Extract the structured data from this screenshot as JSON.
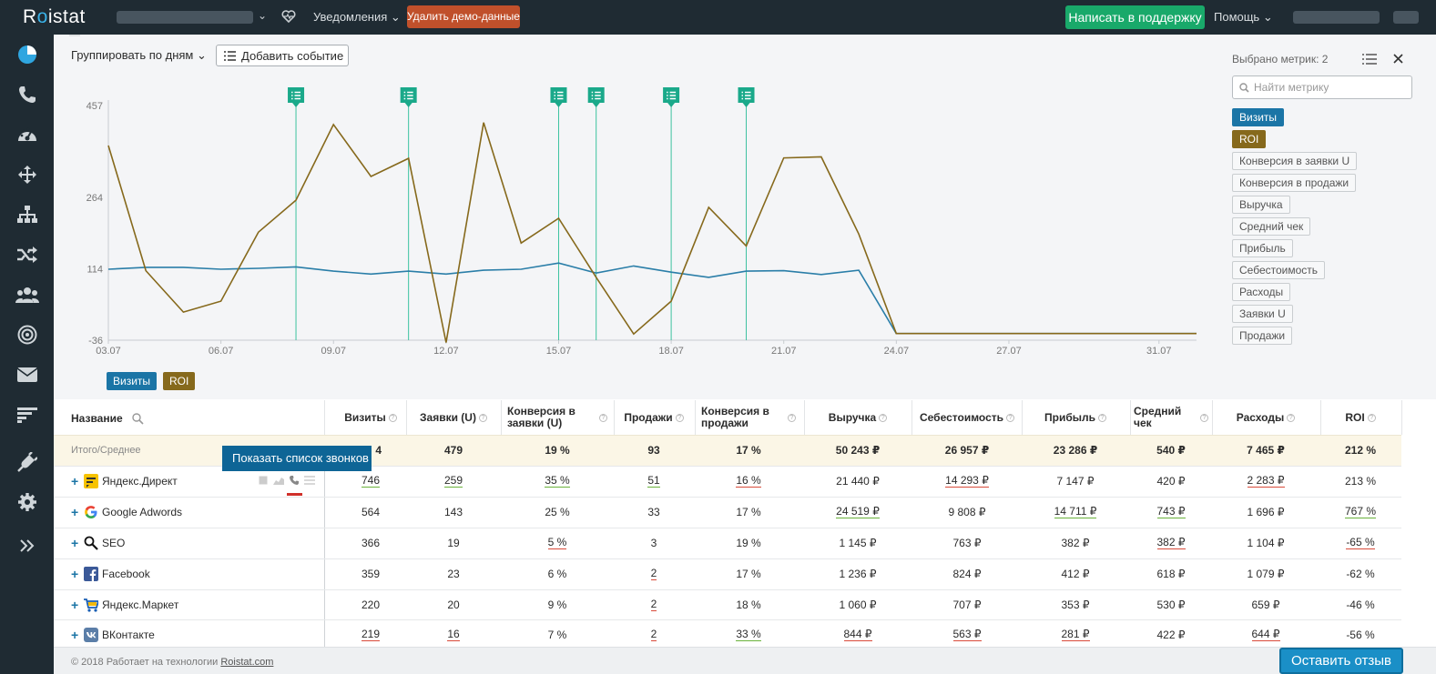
{
  "header": {
    "logo_pre": "R",
    "logo_o": "o",
    "logo_post": "istat",
    "notifications": "Уведомления",
    "delete_demo": "Удалить демо-данные",
    "support": "Написать в поддержку",
    "help": "Помощь"
  },
  "sidebar": {
    "icons": [
      "pie-chart-icon",
      "phone-icon",
      "dashboard-icon",
      "move-arrows-icon",
      "sitemap-icon",
      "shuffle-icon",
      "users-icon",
      "target-icon",
      "envelope-icon",
      "funnel-list-icon",
      "plug-icon",
      "gear-icon",
      "expand-icon"
    ]
  },
  "controls": {
    "group_by": "Группировать по дням",
    "add_event": "Добавить событие"
  },
  "metrics_panel": {
    "selected": "Выбрано метрик: 2",
    "search_placeholder": "Найти метрику",
    "tags": [
      {
        "label": "Визиты",
        "state": "blue"
      },
      {
        "label": "ROI",
        "state": "gold"
      },
      {
        "label": "Конверсия в заявки U",
        "state": "off"
      },
      {
        "label": "Конверсия в продажи",
        "state": "off"
      },
      {
        "label": "Выручка",
        "state": "off"
      },
      {
        "label": "Средний чек",
        "state": "off"
      },
      {
        "label": "Прибыль",
        "state": "off"
      },
      {
        "label": "Себестоимость",
        "state": "off"
      },
      {
        "label": "Расходы",
        "state": "off"
      },
      {
        "label": "Заявки U",
        "state": "off"
      },
      {
        "label": "Продажи",
        "state": "off"
      }
    ]
  },
  "chart_data": {
    "type": "line",
    "x": [
      "03.07",
      "04.07",
      "05.07",
      "06.07",
      "07.07",
      "08.07",
      "09.07",
      "10.07",
      "11.07",
      "12.07",
      "13.07",
      "14.07",
      "15.07",
      "16.07",
      "17.07",
      "18.07",
      "19.07",
      "20.07",
      "21.07",
      "22.07",
      "23.07",
      "24.07",
      "25.07",
      "26.07",
      "27.07",
      "28.07",
      "29.07",
      "30.07",
      "31.07",
      "01.08"
    ],
    "x_tick_labels": [
      "03.07",
      "06.07",
      "09.07",
      "12.07",
      "15.07",
      "18.07",
      "21.07",
      "24.07",
      "27.07",
      "31.07"
    ],
    "y_tick_labels": [
      "457",
      "264",
      "114",
      "-36"
    ],
    "ylim": [
      -36,
      457
    ],
    "series": [
      {
        "name": "Визиты",
        "color": "#2a7ea8",
        "values": [
          113,
          117,
          117,
          113,
          115,
          118,
          109,
          103,
          109,
          103,
          111,
          113,
          126,
          105,
          120,
          107,
          96,
          109,
          110,
          102,
          111,
          -22,
          -22,
          -22,
          -22,
          -22,
          -22,
          -22,
          -22,
          -22
        ]
      },
      {
        "name": "ROI",
        "color": "#86691c",
        "values": [
          373,
          110,
          23,
          46,
          191,
          258,
          417,
          308,
          346,
          -41,
          421,
          168,
          220,
          96,
          -23,
          46,
          243,
          162,
          347,
          349,
          187,
          -22,
          -22,
          -22,
          -22,
          -22,
          -22,
          -22,
          -22,
          -22
        ]
      }
    ],
    "event_markers": [
      "08.07",
      "11.07",
      "15.07",
      "16.07",
      "18.07",
      "20.07"
    ]
  },
  "legend": {
    "visits": "Визиты",
    "roi": "ROI"
  },
  "table": {
    "headers": [
      "Название",
      "Визиты",
      "Заявки (U)",
      "Конверсия в заявки (U)",
      "Продажи",
      "Конверсия в продажи",
      "Выручка",
      "Себестоимость",
      "Прибыль",
      "Средний чек",
      "Расходы",
      "ROI"
    ],
    "total": [
      "Итого/Среднее",
      "",
      "479",
      "19 %",
      "93",
      "17 %",
      "50 243 ₽",
      "26 957 ₽",
      "23 286 ₽",
      "540 ₽",
      "7 465 ₽",
      "212 %"
    ],
    "total_visits_tail": "4",
    "rows": [
      {
        "name": "Яндекс.Директ",
        "icon": "yandex-direct-icon",
        "cells": [
          "746",
          "259",
          "35 %",
          "51",
          "16 %",
          "21 440 ₽",
          "14 293 ₽",
          "7 147 ₽",
          "420 ₽",
          "2 283 ₽",
          "213 %"
        ],
        "u": [
          "g",
          "g",
          "g",
          "g",
          "r",
          "",
          "r",
          "",
          "",
          "r",
          ""
        ]
      },
      {
        "name": "Google Adwords",
        "icon": "google-icon",
        "cells": [
          "564",
          "143",
          "25 %",
          "33",
          "17 %",
          "24 519 ₽",
          "9 808 ₽",
          "14 711 ₽",
          "743 ₽",
          "1 696 ₽",
          "767 %"
        ],
        "u": [
          "",
          "",
          "",
          "",
          "",
          "g",
          "",
          "g",
          "g",
          "",
          "g"
        ]
      },
      {
        "name": "SEO",
        "icon": "search-magnifier-icon",
        "cells": [
          "366",
          "19",
          "5 %",
          "3",
          "19 %",
          "1 145 ₽",
          "763 ₽",
          "382 ₽",
          "382 ₽",
          "1 104 ₽",
          "-65 %"
        ],
        "u": [
          "",
          "",
          "r",
          "",
          "",
          "",
          "",
          "",
          "r",
          "",
          "r"
        ]
      },
      {
        "name": "Facebook",
        "icon": "facebook-icon",
        "cells": [
          "359",
          "23",
          "6 %",
          "2",
          "17 %",
          "1 236 ₽",
          "824 ₽",
          "412 ₽",
          "618 ₽",
          "1 079 ₽",
          "-62 %"
        ],
        "u": [
          "",
          "",
          "",
          "r",
          "",
          "",
          "",
          "",
          "",
          "",
          ""
        ]
      },
      {
        "name": "Яндекс.Маркет",
        "icon": "cart-icon",
        "cells": [
          "220",
          "20",
          "9 %",
          "2",
          "18 %",
          "1 060 ₽",
          "707 ₽",
          "353 ₽",
          "530 ₽",
          "659 ₽",
          "-46 %"
        ],
        "u": [
          "",
          "",
          "",
          "r",
          "",
          "",
          "",
          "",
          "",
          "",
          ""
        ]
      },
      {
        "name": "ВКонтакте",
        "icon": "vk-icon",
        "cells": [
          "219",
          "16",
          "7 %",
          "2",
          "33 %",
          "844 ₽",
          "563 ₽",
          "281 ₽",
          "422 ₽",
          "644 ₽",
          "-56 %"
        ],
        "u": [
          "r",
          "r",
          "",
          "r",
          "g",
          "r",
          "r",
          "r",
          "",
          "r",
          ""
        ]
      }
    ]
  },
  "tooltip": "Показать список звонков",
  "footer": {
    "text": "© 2018 Работает на технологии ",
    "link": "Roistat.com",
    "feedback": "Оставить отзыв"
  }
}
